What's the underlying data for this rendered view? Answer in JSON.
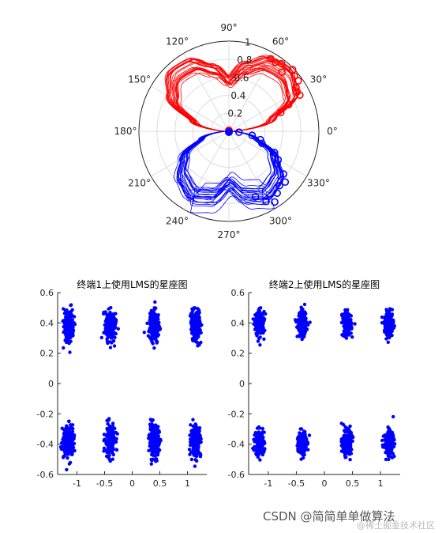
{
  "chart_data": [
    {
      "type": "polar-line",
      "title": "",
      "angle_labels": [
        "0°",
        "30°",
        "60°",
        "90°",
        "120°",
        "150°",
        "180°",
        "210°",
        "240°",
        "270°",
        "300°",
        "330°"
      ],
      "radius_labels": [
        "0.2",
        "0.4",
        "0.6",
        "0.8",
        "1"
      ],
      "rlim": [
        0,
        1
      ],
      "grid": true,
      "series": [
        {
          "color": "#ff0000",
          "theta_deg": [
            0,
            15,
            30,
            45,
            60,
            75,
            90,
            105,
            120,
            135,
            150,
            165,
            180
          ],
          "r_mean": [
            0.05,
            0.55,
            0.9,
            0.98,
            0.95,
            0.8,
            0.62,
            0.78,
            0.93,
            0.95,
            0.8,
            0.45,
            0.05
          ],
          "curve_count": 22,
          "markers_theta_deg": [
            20,
            24,
            27,
            30,
            33,
            36,
            40,
            44,
            48,
            52,
            56,
            60
          ],
          "marker": "o"
        },
        {
          "color": "#0000ff",
          "theta_deg": [
            180,
            195,
            210,
            225,
            240,
            255,
            270,
            285,
            300,
            315,
            330,
            345,
            360
          ],
          "r_mean": [
            0.05,
            0.35,
            0.65,
            0.82,
            0.9,
            0.84,
            0.65,
            0.82,
            0.9,
            0.84,
            0.65,
            0.35,
            0.05
          ],
          "curve_count": 22,
          "markers_theta_deg": [
            292,
            298,
            303,
            308,
            313,
            318,
            322,
            326,
            330,
            335,
            340,
            345,
            350,
            355
          ],
          "marker": "o"
        }
      ]
    },
    {
      "type": "scatter",
      "title": "终端1上使用LMS的星座图",
      "xlim": [
        -1.35,
        1.35
      ],
      "ylim": [
        -0.6,
        0.6
      ],
      "x_ticks": [
        "-1",
        "-0.5",
        "0",
        "0.5",
        "1"
      ],
      "y_ticks": [
        "-0.6",
        "-0.4",
        "-0.2",
        "0",
        "0.2",
        "0.4",
        "0.6"
      ],
      "color": "#0000ff",
      "clusters": [
        {
          "x": -1.15,
          "y": 0.38
        },
        {
          "x": -0.4,
          "y": 0.38
        },
        {
          "x": 0.4,
          "y": 0.38
        },
        {
          "x": 1.15,
          "y": 0.38
        },
        {
          "x": -1.15,
          "y": -0.38
        },
        {
          "x": -0.4,
          "y": -0.38
        },
        {
          "x": 0.4,
          "y": -0.38
        },
        {
          "x": 1.15,
          "y": -0.38
        }
      ],
      "spread": {
        "x": 0.045,
        "y": 0.05
      },
      "points_per_cluster": 220
    },
    {
      "type": "scatter",
      "title": "终端2上使用LMS的星座图",
      "xlim": [
        -1.35,
        1.35
      ],
      "ylim": [
        -0.6,
        0.6
      ],
      "x_ticks": [
        "-1",
        "-0.5",
        "0",
        "0.5",
        "1"
      ],
      "y_ticks": [
        "-0.6",
        "-0.4",
        "-0.2",
        "0",
        "0.2",
        "0.4",
        "0.6"
      ],
      "color": "#0000ff",
      "clusters": [
        {
          "x": -1.15,
          "y": 0.39
        },
        {
          "x": -0.4,
          "y": 0.39
        },
        {
          "x": 0.4,
          "y": 0.39
        },
        {
          "x": 1.15,
          "y": 0.39
        },
        {
          "x": -1.15,
          "y": -0.39
        },
        {
          "x": -0.4,
          "y": -0.39
        },
        {
          "x": 0.4,
          "y": -0.39
        },
        {
          "x": 1.15,
          "y": -0.39
        }
      ],
      "spread": {
        "x": 0.04,
        "y": 0.04
      },
      "points_per_cluster": 200
    }
  ],
  "watermark": {
    "text": "CSDN @简简单单做算法",
    "subtext": "@稀土掘金技术社区"
  }
}
